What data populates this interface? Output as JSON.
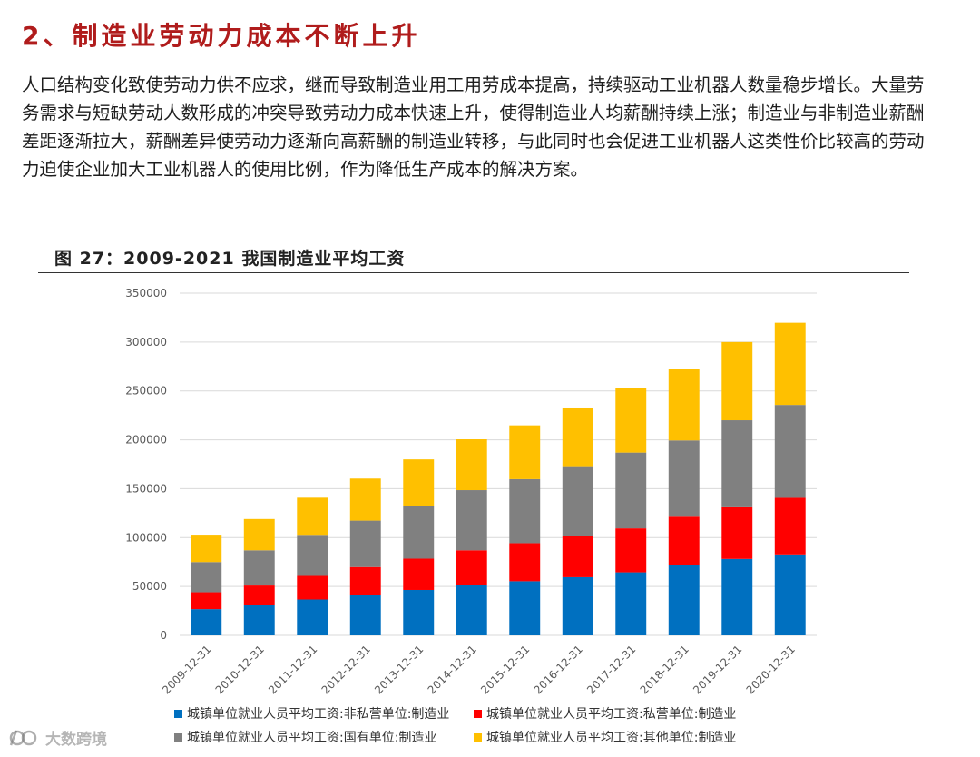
{
  "heading": "2、制造业劳动力成本不断上升",
  "paragraph": "人口结构变化致使劳动力供不应求，继而导致制造业用工用劳成本提高，持续驱动工业机器人数量稳步增长。大量劳务需求与短缺劳动人数形成的冲突导致劳动力成本快速上升，使得制造业人均薪酬持续上涨；制造业与非制造业薪酬差距逐渐拉大，薪酬差异使劳动力逐渐向高薪酬的制造业转移，与此同时也会促进工业机器人这类性价比较高的劳动力迫使企业加大工业机器人的使用比例，作为降低生产成本的解决方案。",
  "figure_title": "图 27：2009-2021 我国制造业平均工资",
  "watermark": "大数跨境",
  "colors": {
    "heading": "#b01c1c",
    "gridline": "#d9d9d9"
  },
  "chart_data": {
    "type": "bar",
    "stacked": true,
    "title": "图 27：2009-2021 我国制造业平均工资",
    "xlabel": "",
    "ylabel": "",
    "ylim": [
      0,
      350000
    ],
    "yticks": [
      0,
      50000,
      100000,
      150000,
      200000,
      250000,
      300000,
      350000
    ],
    "grid": true,
    "legend_position": "bottom",
    "categories": [
      "2009-12-31",
      "2010-12-31",
      "2011-12-31",
      "2012-12-31",
      "2013-12-31",
      "2014-12-31",
      "2015-12-31",
      "2016-12-31",
      "2017-12-31",
      "2018-12-31",
      "2019-12-31",
      "2020-12-31"
    ],
    "series": [
      {
        "name": "城镇单位就业人员平均工资:非私营单位:制造业",
        "color": "#0070c0",
        "values": [
          26810,
          30916,
          36665,
          41650,
          46431,
          51369,
          55324,
          59470,
          64452,
          72088,
          78147,
          82783
        ]
      },
      {
        "name": "城镇单位就业人员平均工资:私营单位:制造业",
        "color": "#ff0000",
        "values": [
          17260,
          20090,
          24138,
          28215,
          32035,
          35653,
          38948,
          42066,
          44991,
          49275,
          52858,
          57910
        ]
      },
      {
        "name": "城镇单位就业人员平均工资:国有单位:制造业",
        "color": "#808080",
        "values": [
          30900,
          36000,
          42000,
          47500,
          54000,
          61500,
          65500,
          71500,
          77500,
          78000,
          89000,
          95000
        ]
      },
      {
        "name": "城镇单位就业人员平均工资:其他单位:制造业",
        "color": "#ffc000",
        "values": [
          28000,
          32000,
          38000,
          43000,
          47500,
          52000,
          55000,
          60000,
          66000,
          73000,
          80000,
          84000
        ]
      }
    ]
  }
}
